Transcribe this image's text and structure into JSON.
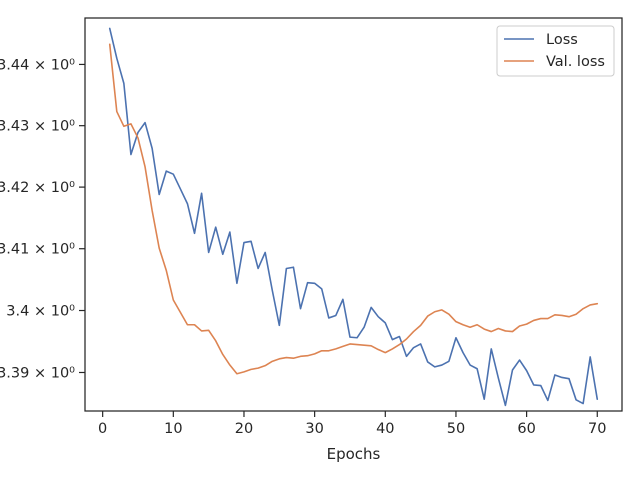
{
  "chart_data": {
    "type": "line",
    "title": "",
    "xlabel": "Epochs",
    "ylabel": "",
    "xlim": [
      -2.5,
      73.5
    ],
    "ylim": [
      3.3838,
      3.4476
    ],
    "xticks": [
      0,
      10,
      20,
      30,
      40,
      50,
      60,
      70
    ],
    "xtick_labels": [
      "0",
      "10",
      "20",
      "30",
      "40",
      "50",
      "60",
      "70"
    ],
    "yticks": [
      3.39,
      3.4,
      3.41,
      3.42,
      3.43,
      3.44
    ],
    "ytick_labels": [
      "3.39 × 10⁰",
      "3.4 × 10⁰",
      "3.41 × 10⁰",
      "3.42 × 10⁰",
      "3.43 × 10⁰",
      "3.44 × 10⁰"
    ],
    "y_scale": "log",
    "grid": false,
    "legend_position": "upper-right",
    "x": [
      1,
      2,
      3,
      4,
      5,
      6,
      7,
      8,
      9,
      10,
      11,
      12,
      13,
      14,
      15,
      16,
      17,
      18,
      19,
      20,
      21,
      22,
      23,
      24,
      25,
      26,
      27,
      28,
      29,
      30,
      31,
      32,
      33,
      34,
      35,
      36,
      37,
      38,
      39,
      40,
      41,
      42,
      43,
      44,
      45,
      46,
      47,
      48,
      49,
      50,
      51,
      52,
      53,
      54,
      55,
      56,
      57,
      58,
      59,
      60,
      61,
      62,
      63,
      64,
      65,
      66,
      67,
      68,
      69,
      70
    ],
    "series": [
      {
        "name": "Loss",
        "color": "#4c72b0",
        "values": [
          3.4459,
          3.441,
          3.4369,
          3.4253,
          3.4289,
          3.4305,
          3.4263,
          3.4188,
          3.4226,
          3.4221,
          3.4197,
          3.4173,
          3.4125,
          3.419,
          3.4094,
          3.4135,
          3.4091,
          3.4127,
          3.4044,
          3.411,
          3.4112,
          3.4068,
          3.4094,
          3.4033,
          3.3976,
          3.4068,
          3.407,
          3.4003,
          3.4045,
          3.4044,
          3.4035,
          3.3988,
          3.3992,
          3.4018,
          3.3957,
          3.3956,
          3.3973,
          3.4005,
          3.399,
          3.398,
          3.3953,
          3.3958,
          3.3926,
          3.394,
          3.3946,
          3.3917,
          3.3909,
          3.3912,
          3.3918,
          3.3956,
          3.3932,
          3.3912,
          3.3906,
          3.3857,
          3.3938,
          3.3891,
          3.3847,
          3.3904,
          3.392,
          3.3903,
          3.388,
          3.3879,
          3.3855,
          3.3896,
          3.3892,
          3.389,
          3.3856,
          3.385,
          3.3925,
          3.3857
        ]
      },
      {
        "name": "Val. loss",
        "color": "#dd8452",
        "values": [
          3.4433,
          3.4323,
          3.4299,
          3.4303,
          3.428,
          3.4233,
          3.4162,
          3.4101,
          3.4065,
          3.4017,
          3.3997,
          3.3977,
          3.3977,
          3.3967,
          3.3968,
          3.3951,
          3.3929,
          3.3912,
          3.3898,
          3.3901,
          3.3905,
          3.3907,
          3.3911,
          3.3918,
          3.3922,
          3.3924,
          3.3923,
          3.3926,
          3.3927,
          3.393,
          3.3935,
          3.3935,
          3.3938,
          3.3942,
          3.3946,
          3.3945,
          3.3944,
          3.3943,
          3.3937,
          3.3932,
          3.3938,
          3.3945,
          3.3954,
          3.3966,
          3.3976,
          3.3991,
          3.3998,
          3.4001,
          3.3994,
          3.3982,
          3.3977,
          3.3973,
          3.3977,
          3.397,
          3.3966,
          3.3971,
          3.3967,
          3.3966,
          3.3975,
          3.3978,
          3.3984,
          3.3987,
          3.3987,
          3.3993,
          3.3992,
          3.399,
          3.3994,
          3.4003,
          3.4009,
          3.4011
        ]
      }
    ]
  }
}
